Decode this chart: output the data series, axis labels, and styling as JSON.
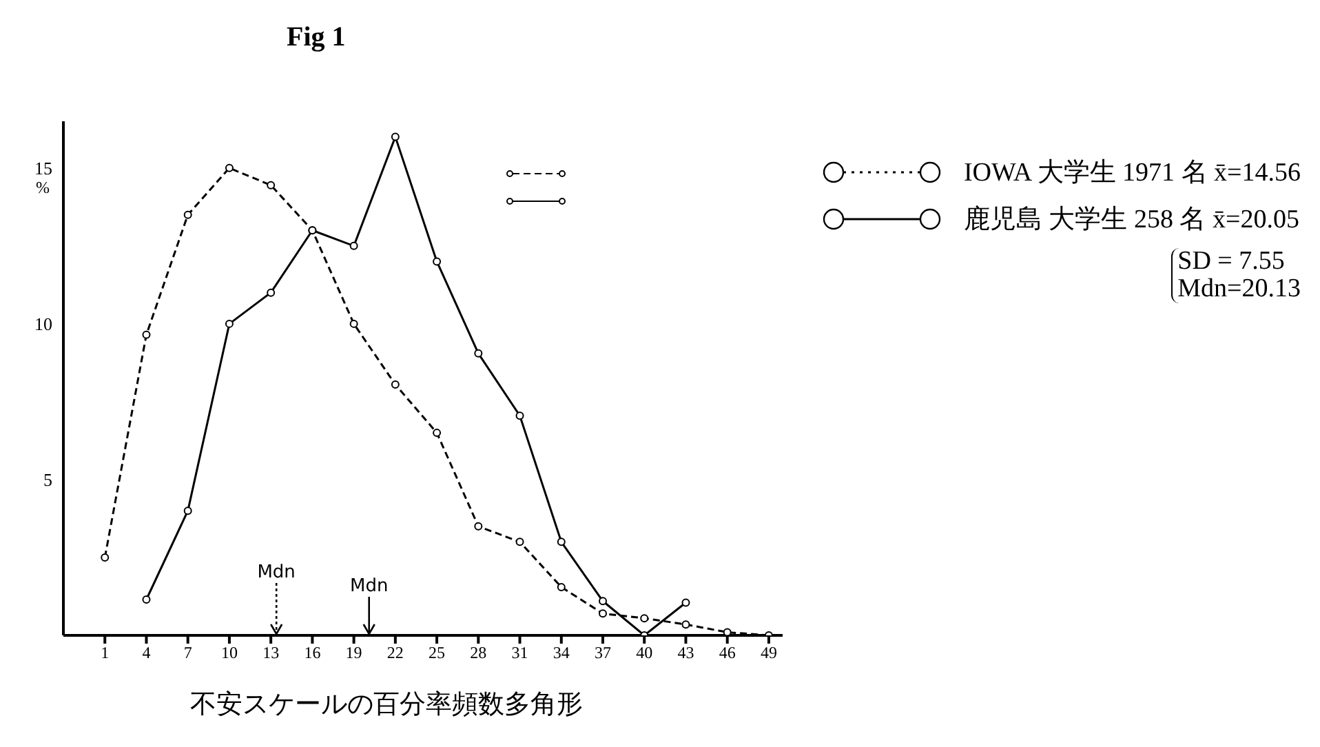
{
  "chart_data": {
    "type": "line",
    "title": "Fig 1",
    "xlabel": "不安スケールの百分率頻数多角形",
    "ylabel": "%",
    "x": [
      1,
      4,
      7,
      10,
      13,
      16,
      19,
      22,
      25,
      28,
      31,
      34,
      37,
      40,
      43,
      46,
      49
    ],
    "series": [
      {
        "name": "IOWA 大学生 1971 名 x̄=14.56",
        "color": "#000000",
        "line_style": "dashed",
        "values": [
          2.5,
          9.65,
          13.5,
          15.0,
          14.45,
          13.0,
          10.0,
          8.05,
          6.5,
          3.5,
          3.0,
          1.55,
          0.7,
          0.55,
          0.35,
          0.1,
          0
        ]
      },
      {
        "name": "鹿児島 大学生 258 名 x̄=20.05",
        "color": "#000000",
        "line_style": "solid",
        "x": [
          4,
          7,
          10,
          13,
          16,
          19,
          22,
          25,
          28,
          31,
          34,
          37,
          40,
          43
        ],
        "values": [
          1.15,
          4.0,
          10.0,
          11.0,
          13.0,
          12.5,
          16.0,
          12.0,
          9.05,
          7.05,
          3.0,
          1.1,
          0,
          1.05
        ]
      }
    ],
    "xlim": [
      -2,
      50
    ],
    "xticks": [
      1,
      4,
      7,
      10,
      13,
      16,
      19,
      22,
      25,
      28,
      31,
      34,
      37,
      40,
      43,
      46,
      49
    ],
    "ylim": [
      0,
      16.5
    ],
    "yticks": [
      5,
      10,
      15
    ],
    "grid": false,
    "legend": "top right",
    "marker": "circle",
    "annotations": [
      "SD = 7.55",
      "Mdn=20.13"
    ],
    "ref_lines": [
      {
        "axis": "x",
        "value": 13.4,
        "label": "Mdn",
        "line_style": "dotted"
      },
      {
        "axis": "x",
        "value": 20.1,
        "label": "Mdn",
        "line_style": "solid"
      }
    ]
  }
}
